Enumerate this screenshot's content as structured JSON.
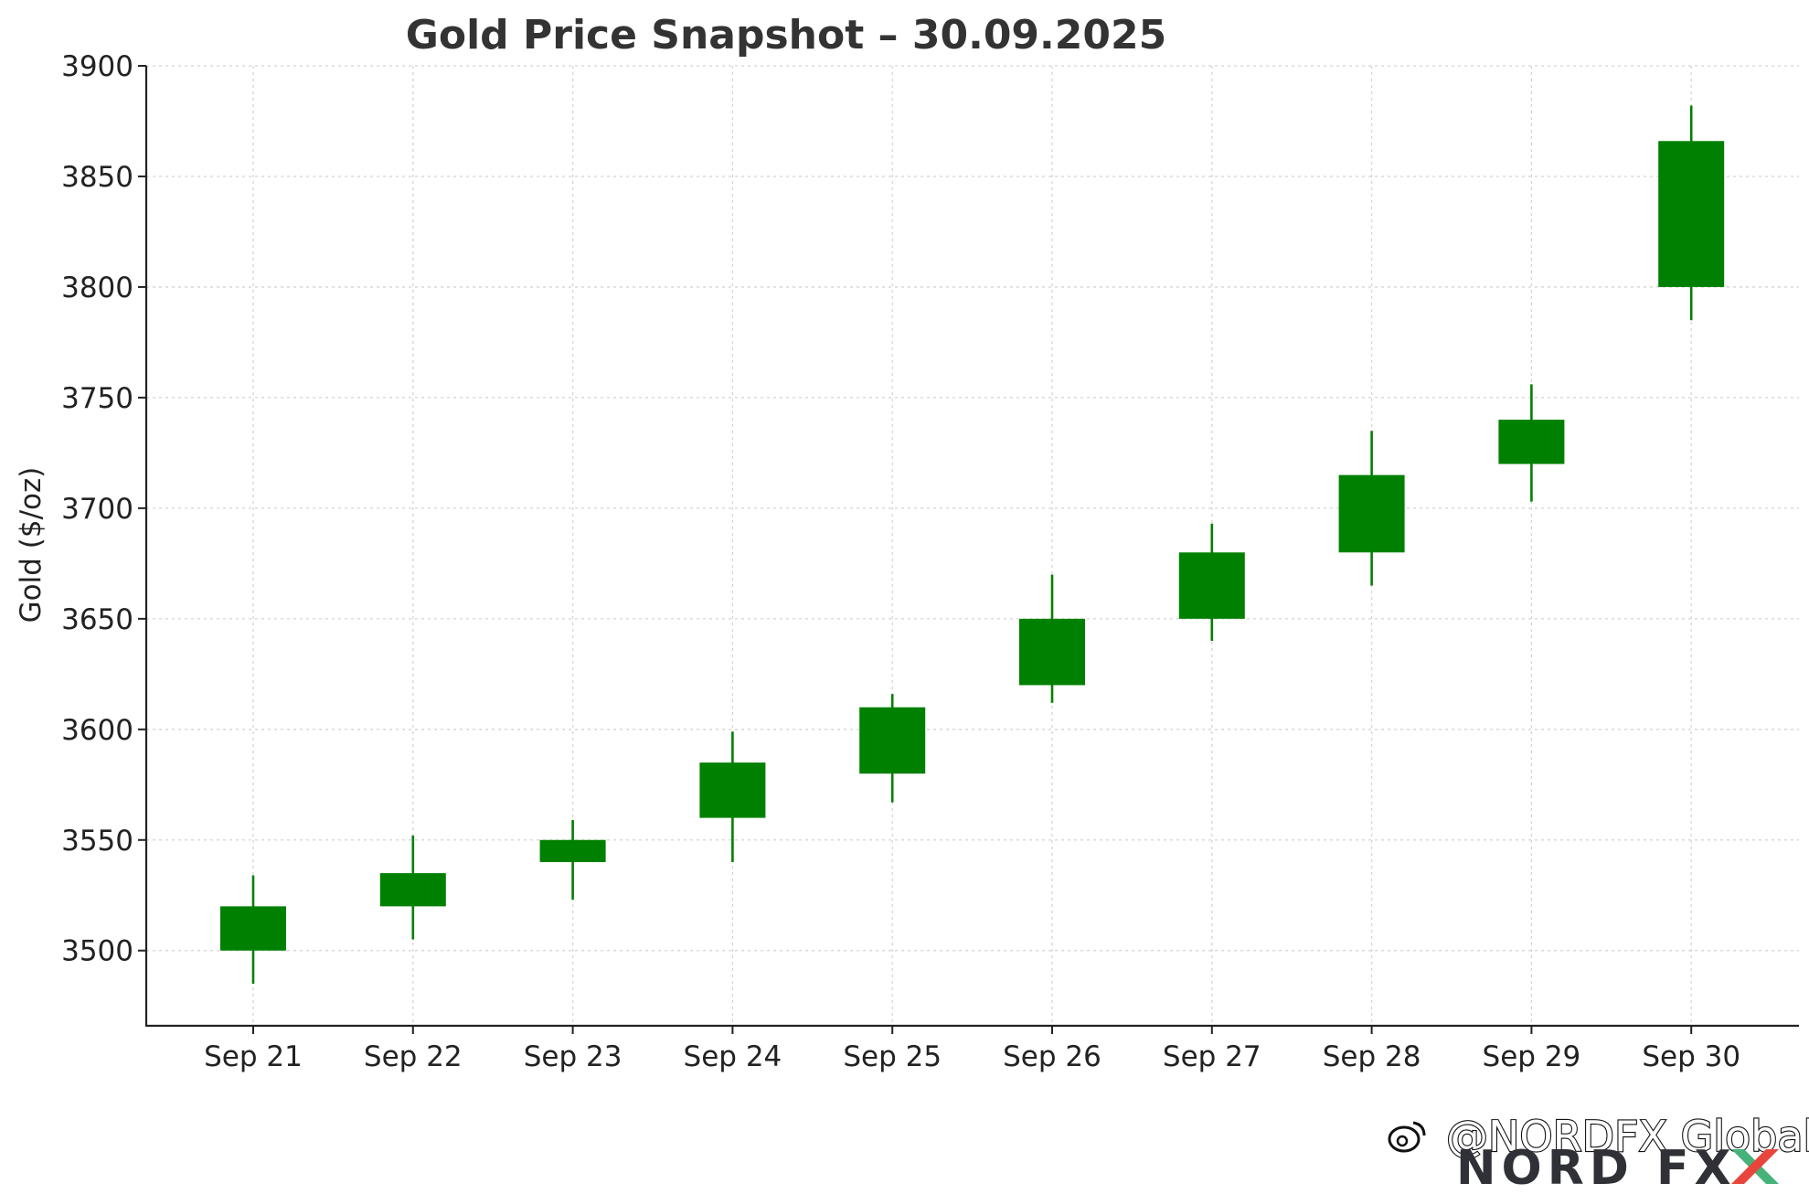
{
  "chart_data": {
    "type": "candlestick",
    "title": "Gold Price Snapshot – 30.09.2025",
    "xlabel": "",
    "ylabel": "Gold ($/oz)",
    "categories": [
      "Sep 21",
      "Sep 22",
      "Sep 23",
      "Sep 24",
      "Sep 25",
      "Sep 26",
      "Sep 27",
      "Sep 28",
      "Sep 29",
      "Sep 30"
    ],
    "series": [
      {
        "open": [
          3500,
          3520,
          3540,
          3560,
          3580,
          3620,
          3650,
          3680,
          3720,
          3800
        ],
        "high": [
          3534,
          3552,
          3559,
          3599,
          3616,
          3670,
          3693,
          3735,
          3756,
          3882
        ],
        "low": [
          3485,
          3505,
          3523,
          3540,
          3567,
          3612,
          3640,
          3665,
          3703,
          3785
        ],
        "close": [
          3520,
          3535,
          3550,
          3585,
          3610,
          3650,
          3680,
          3715,
          3740,
          3866
        ]
      }
    ],
    "yticks": [
      3500,
      3550,
      3600,
      3650,
      3700,
      3750,
      3800,
      3850,
      3900
    ],
    "ylim": [
      3466,
      3900
    ],
    "grid": true,
    "candle_color": "#008000",
    "grid_color": "#d4d4d4"
  },
  "watermark": {
    "handle": "@NORDFX Global",
    "brand": "NORD FX",
    "brand_color": "#2f3136",
    "accent_color": "#e8463c",
    "accent_color_2": "#46b37a",
    "icon": "weibo-icon"
  }
}
